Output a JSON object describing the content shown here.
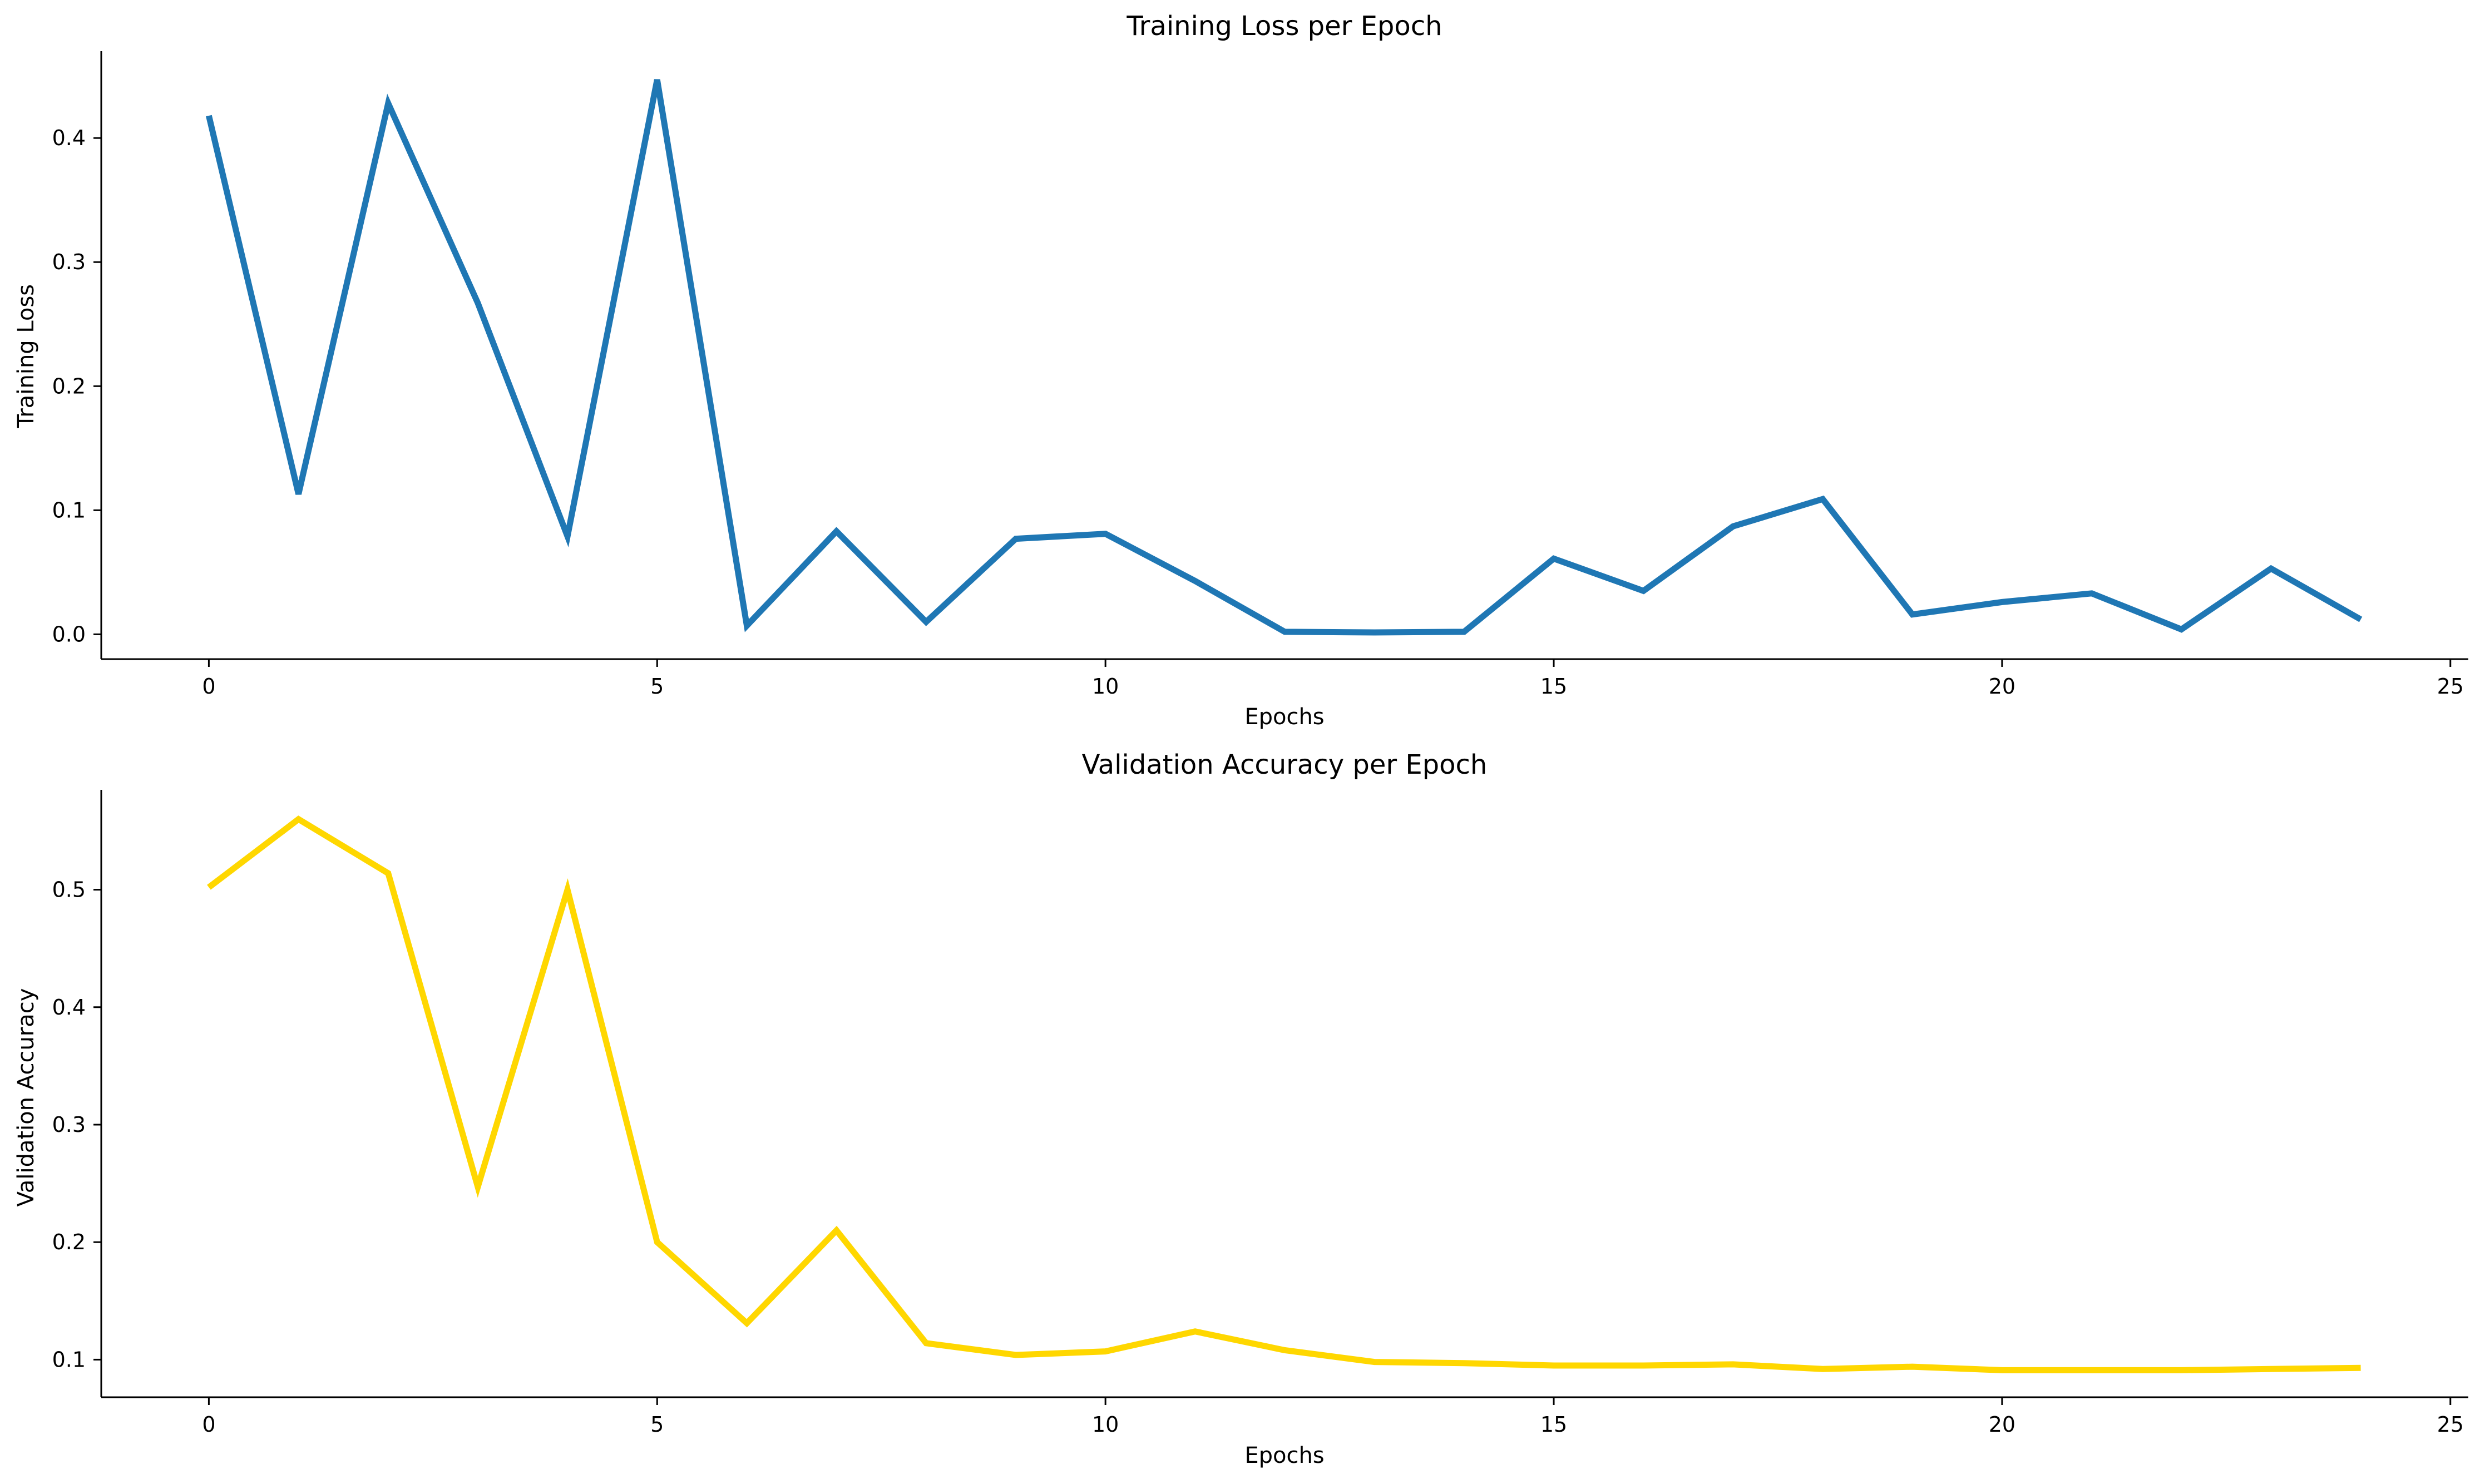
{
  "chart_data": [
    {
      "type": "line",
      "title": "Training Loss per Epoch",
      "xlabel": "Epochs",
      "ylabel": "Training Loss",
      "xlim": [
        -1.2,
        25.2
      ],
      "ylim": [
        -0.02,
        0.47
      ],
      "xticks": [
        0,
        5,
        10,
        15,
        20,
        25
      ],
      "xtick_labels": [
        "0",
        "5",
        "10",
        "15",
        "20",
        "25"
      ],
      "yticks": [
        0.0,
        0.1,
        0.2,
        0.3,
        0.4
      ],
      "ytick_labels": [
        "0.0",
        "0.1",
        "0.2",
        "0.3",
        "0.4"
      ],
      "grid": false,
      "series": [
        {
          "color": "#1f77b4",
          "x": [
            0,
            1,
            2,
            3,
            4,
            5,
            6,
            7,
            8,
            9,
            10,
            11,
            12,
            13,
            14,
            15,
            16,
            17,
            18,
            19,
            20,
            21,
            22,
            23,
            24
          ],
          "values": [
            0.418,
            0.113,
            0.428,
            0.267,
            0.079,
            0.447,
            0.007,
            0.083,
            0.01,
            0.077,
            0.081,
            0.043,
            0.002,
            0.0015,
            0.002,
            0.061,
            0.035,
            0.087,
            0.109,
            0.016,
            0.026,
            0.033,
            0.004,
            0.053,
            0.012
          ]
        }
      ]
    },
    {
      "type": "line",
      "title": "Validation Accuracy per Epoch",
      "xlabel": "Epochs",
      "ylabel": "Validation Accuracy",
      "xlim": [
        -1.2,
        25.2
      ],
      "ylim": [
        0.068,
        0.585
      ],
      "xticks": [
        0,
        5,
        10,
        15,
        20,
        25
      ],
      "xtick_labels": [
        "0",
        "5",
        "10",
        "15",
        "20",
        "25"
      ],
      "yticks": [
        0.1,
        0.2,
        0.3,
        0.4,
        0.5
      ],
      "ytick_labels": [
        "0.1",
        "0.2",
        "0.3",
        "0.4",
        "0.5"
      ],
      "grid": false,
      "series": [
        {
          "color": "#ffd700",
          "x": [
            0,
            1,
            2,
            3,
            4,
            5,
            6,
            7,
            8,
            9,
            10,
            11,
            12,
            13,
            14,
            15,
            16,
            17,
            18,
            19,
            20,
            21,
            22,
            23,
            24
          ],
          "values": [
            0.502,
            0.56,
            0.514,
            0.247,
            0.5,
            0.2,
            0.131,
            0.21,
            0.114,
            0.104,
            0.107,
            0.124,
            0.108,
            0.098,
            0.097,
            0.095,
            0.095,
            0.096,
            0.092,
            0.094,
            0.091,
            0.091,
            0.091,
            0.092,
            0.093
          ]
        }
      ]
    }
  ]
}
